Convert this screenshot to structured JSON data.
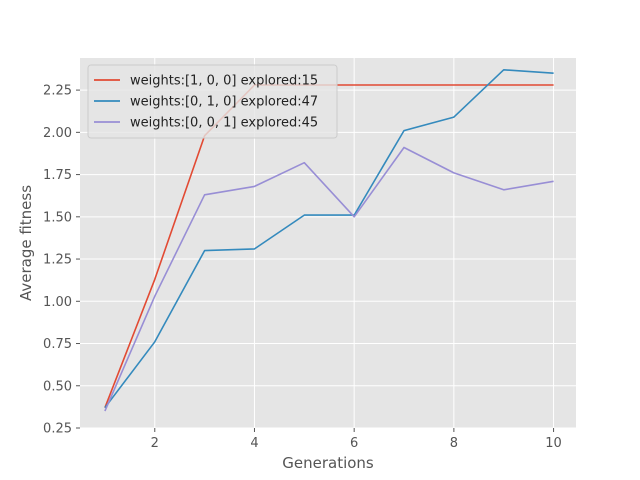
{
  "chart_data": {
    "type": "line",
    "title": "",
    "xlabel": "Generations",
    "ylabel": "Average fitness",
    "xlim": [
      0.5,
      10.45
    ],
    "ylim": [
      0.25,
      2.44
    ],
    "xticks": [
      2,
      4,
      6,
      8,
      10
    ],
    "yticks": [
      0.25,
      0.5,
      0.75,
      1.0,
      1.25,
      1.5,
      1.75,
      2.0,
      2.25
    ],
    "ytick_labels": [
      "0.25",
      "0.50",
      "0.75",
      "1.00",
      "1.25",
      "1.50",
      "1.75",
      "2.00",
      "2.25"
    ],
    "grid": true,
    "legend_position": "top-left",
    "x": [
      1,
      2,
      3,
      4,
      5,
      6,
      7,
      8,
      9,
      10
    ],
    "series": [
      {
        "name": "weights:[1, 0, 0] explored:15",
        "color": "#E24A33",
        "values": [
          0.37,
          1.13,
          1.98,
          2.28,
          2.28,
          2.28,
          2.28,
          2.28,
          2.28,
          2.28
        ]
      },
      {
        "name": "weights:[0, 1, 0] explored:47",
        "color": "#348ABD",
        "values": [
          0.37,
          0.76,
          1.3,
          1.31,
          1.51,
          1.51,
          2.01,
          2.09,
          2.37,
          2.35
        ]
      },
      {
        "name": "weights:[0, 0, 1] explored:45",
        "color": "#988ED5",
        "values": [
          0.35,
          1.03,
          1.63,
          1.68,
          1.82,
          1.5,
          1.91,
          1.76,
          1.66,
          1.71
        ]
      }
    ]
  }
}
